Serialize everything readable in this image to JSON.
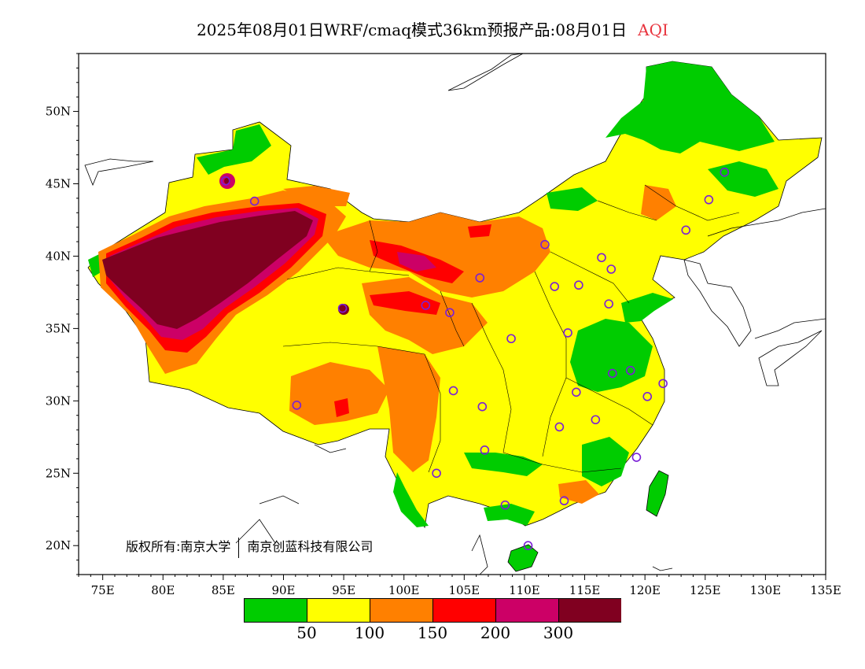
{
  "title": {
    "main": "2025年08月01日WRF/cmaq模式36km预报产品:08月01日",
    "variable": "AQI"
  },
  "copyright": {
    "owner_prefix": "版权所有:南京大学",
    "owner_second": "南京创蓝科技有限公司"
  },
  "axes": {
    "x_ticks": [
      "75E",
      "80E",
      "85E",
      "90E",
      "95E",
      "100E",
      "105E",
      "110E",
      "115E",
      "120E",
      "125E",
      "130E",
      "135E"
    ],
    "y_ticks": [
      "20N",
      "25N",
      "30N",
      "35N",
      "40N",
      "45N",
      "50N"
    ],
    "x_range": [
      73,
      135
    ],
    "y_range": [
      18,
      54
    ]
  },
  "legend": {
    "bins": [
      {
        "color": "#00cc00"
      },
      {
        "color": "#ffff00"
      },
      {
        "color": "#ff8000"
      },
      {
        "color": "#ff0000"
      },
      {
        "color": "#cc0066"
      },
      {
        "color": "#800020"
      }
    ],
    "labels": [
      "50",
      "100",
      "150",
      "200",
      "300"
    ]
  },
  "colors": {
    "title_variable": "#e8343e",
    "station_marker": "#7a1fd6"
  },
  "stations": [
    {
      "lon": 87.6,
      "lat": 43.8
    },
    {
      "lon": 85.2,
      "lat": 45.2
    },
    {
      "lon": 126.6,
      "lat": 45.8
    },
    {
      "lon": 125.3,
      "lat": 43.9
    },
    {
      "lon": 123.4,
      "lat": 41.8
    },
    {
      "lon": 111.7,
      "lat": 40.8
    },
    {
      "lon": 116.4,
      "lat": 39.9
    },
    {
      "lon": 117.2,
      "lat": 39.1
    },
    {
      "lon": 114.5,
      "lat": 38.0
    },
    {
      "lon": 112.5,
      "lat": 37.9
    },
    {
      "lon": 106.3,
      "lat": 38.5
    },
    {
      "lon": 101.8,
      "lat": 36.6
    },
    {
      "lon": 103.8,
      "lat": 36.1
    },
    {
      "lon": 117.0,
      "lat": 36.7
    },
    {
      "lon": 113.6,
      "lat": 34.7
    },
    {
      "lon": 108.9,
      "lat": 34.3
    },
    {
      "lon": 117.3,
      "lat": 31.9
    },
    {
      "lon": 118.8,
      "lat": 32.1
    },
    {
      "lon": 121.5,
      "lat": 31.2
    },
    {
      "lon": 120.2,
      "lat": 30.3
    },
    {
      "lon": 114.3,
      "lat": 30.6
    },
    {
      "lon": 104.1,
      "lat": 30.7
    },
    {
      "lon": 106.5,
      "lat": 29.6
    },
    {
      "lon": 91.1,
      "lat": 29.7
    },
    {
      "lon": 112.9,
      "lat": 28.2
    },
    {
      "lon": 115.9,
      "lat": 28.7
    },
    {
      "lon": 106.7,
      "lat": 26.6
    },
    {
      "lon": 119.3,
      "lat": 26.1
    },
    {
      "lon": 102.7,
      "lat": 25.0
    },
    {
      "lon": 113.3,
      "lat": 23.1
    },
    {
      "lon": 108.4,
      "lat": 22.8
    },
    {
      "lon": 110.3,
      "lat": 20.0
    },
    {
      "lon": 94.9,
      "lat": 36.4
    }
  ]
}
